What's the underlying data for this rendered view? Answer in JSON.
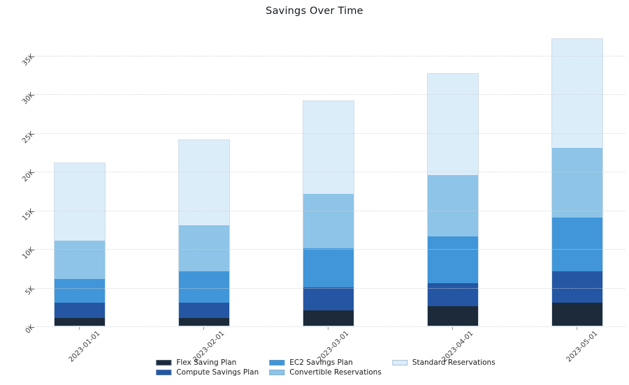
{
  "title": "Savings Over Time",
  "chart_data": {
    "type": "bar",
    "stacked": true,
    "title": "Savings Over Time",
    "xlabel": "",
    "ylabel": "",
    "categories": [
      "2023-01-01",
      "2023-02-01",
      "2023-03-01",
      "2023-04-01",
      "2023-05-01"
    ],
    "series": [
      {
        "name": "Flex Saving Plan",
        "color": "#1d2a39",
        "values": [
          1000,
          1000,
          2000,
          2500,
          3000
        ]
      },
      {
        "name": "Compute Savings Plan",
        "color": "#2456a4",
        "values": [
          2000,
          2000,
          3000,
          3000,
          4000
        ]
      },
      {
        "name": "EC2 Savings Plan",
        "color": "#4096d9",
        "values": [
          3000,
          4000,
          5000,
          6000,
          7000
        ]
      },
      {
        "name": "Convertible Reservations",
        "color": "#8dc4e7",
        "values": [
          5000,
          6000,
          7000,
          8000,
          9000
        ]
      },
      {
        "name": "Standard Reservations",
        "color": "#dcedfa",
        "values": [
          10000,
          11000,
          12000,
          13000,
          14000
        ]
      }
    ],
    "totals": [
      21000,
      24000,
      29000,
      32500,
      37000
    ],
    "yticks": [
      "0K",
      "5K",
      "10K",
      "15K",
      "20K",
      "25K",
      "30K",
      "35K"
    ],
    "ytick_values": [
      0,
      5000,
      10000,
      15000,
      20000,
      25000,
      30000,
      35000
    ],
    "ylim": [
      0,
      38000
    ],
    "grid": "horizontal-dotted",
    "legend_position": "bottom",
    "legend_columns": 3
  }
}
